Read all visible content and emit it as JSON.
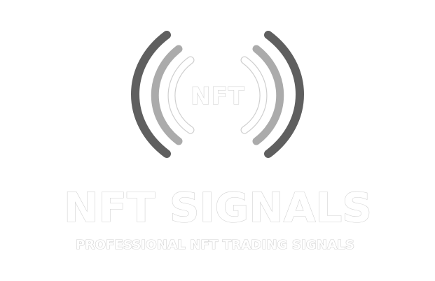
{
  "logo": {
    "badge_text": "NFT",
    "brand_name": "NFT SIGNALS",
    "tagline": "PROFESSIONAL NFT TRADING SIGNALS",
    "icon": "broadcast-signal-icon",
    "colors": {
      "background": "#ffffff",
      "outer_wave": "#5f5f5f",
      "middle_wave": "#ababab",
      "inner_wave_outline": "#cfcfcf",
      "text_outline": "#cfcfcf"
    }
  }
}
